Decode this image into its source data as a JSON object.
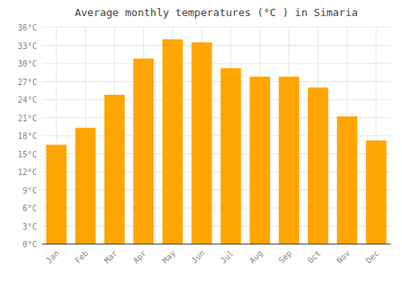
{
  "chart_data": {
    "type": "bar",
    "title": "Average monthly temperatures (°C ) in Simaria",
    "categories": [
      "Jan",
      "Feb",
      "Mar",
      "Apr",
      "May",
      "Jun",
      "Jul",
      "Aug",
      "Sep",
      "Oct",
      "Nov",
      "Dec"
    ],
    "values": [
      16.5,
      19.3,
      24.8,
      30.8,
      34.0,
      33.5,
      29.2,
      27.8,
      27.8,
      26.0,
      21.2,
      17.2
    ],
    "color": "#FFA500",
    "ylim": [
      0,
      36
    ],
    "yticks": [
      {
        "value": 0,
        "label": "0°C"
      },
      {
        "value": 3,
        "label": "3°C"
      },
      {
        "value": 6,
        "label": "6°C"
      },
      {
        "value": 9,
        "label": "9°C"
      },
      {
        "value": 12,
        "label": "12°C"
      },
      {
        "value": 15,
        "label": "15°C"
      },
      {
        "value": 18,
        "label": "18°C"
      },
      {
        "value": 21,
        "label": "21°C"
      },
      {
        "value": 24,
        "label": "24°C"
      },
      {
        "value": 27,
        "label": "27°C"
      },
      {
        "value": 30,
        "label": "30°C"
      },
      {
        "value": 33,
        "label": "33°C"
      },
      {
        "value": 36,
        "label": "36°C"
      }
    ],
    "grid": true
  }
}
